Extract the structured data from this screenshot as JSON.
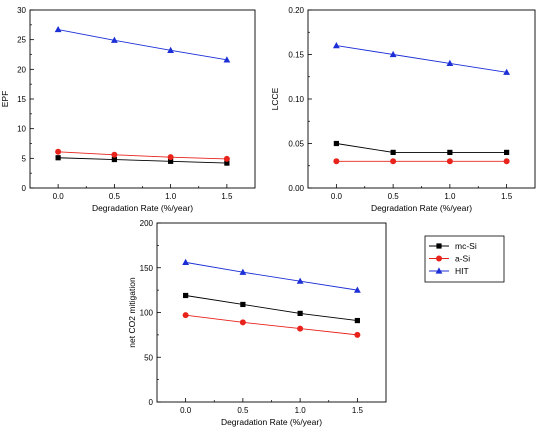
{
  "chart_data": [
    {
      "type": "line",
      "ylabel": "EPF",
      "xlabel": "Degradation Rate (%/year)",
      "x": [
        0.0,
        0.5,
        1.0,
        1.5
      ],
      "xlim": [
        -0.25,
        1.75
      ],
      "ylim": [
        0,
        30
      ],
      "xticks": [
        "0.0",
        "0.5",
        "1.0",
        "1.5"
      ],
      "yticks": [
        "0",
        "5",
        "10",
        "15",
        "20",
        "25",
        "30"
      ],
      "series": [
        {
          "name": "mc-Si",
          "values": [
            5.1,
            4.8,
            4.5,
            4.2
          ]
        },
        {
          "name": "a-Si",
          "values": [
            6.1,
            5.6,
            5.2,
            4.9
          ]
        },
        {
          "name": "HIT",
          "values": [
            26.7,
            24.9,
            23.2,
            21.6
          ]
        }
      ]
    },
    {
      "type": "line",
      "ylabel": "LCCE",
      "xlabel": "Degradation Rate (%/year)",
      "x": [
        0.0,
        0.5,
        1.0,
        1.5
      ],
      "xlim": [
        -0.25,
        1.75
      ],
      "ylim": [
        0,
        0.2
      ],
      "xticks": [
        "0.0",
        "0.5",
        "1.0",
        "1.5"
      ],
      "yticks": [
        "0.00",
        "0.05",
        "0.10",
        "0.15",
        "0.20"
      ],
      "series": [
        {
          "name": "mc-Si",
          "values": [
            0.05,
            0.04,
            0.04,
            0.04
          ]
        },
        {
          "name": "a-Si",
          "values": [
            0.03,
            0.03,
            0.03,
            0.03
          ]
        },
        {
          "name": "HIT",
          "values": [
            0.16,
            0.15,
            0.14,
            0.13
          ]
        }
      ]
    },
    {
      "type": "line",
      "ylabel": "net CO2 mitigation",
      "xlabel": "Degradation Rate (%/year)",
      "x": [
        0.0,
        0.5,
        1.0,
        1.5
      ],
      "xlim": [
        -0.25,
        1.75
      ],
      "ylim": [
        0,
        200
      ],
      "xticks": [
        "0.0",
        "0.5",
        "1.0",
        "1.5"
      ],
      "yticks": [
        "0",
        "50",
        "100",
        "150",
        "200"
      ],
      "series": [
        {
          "name": "mc-Si",
          "values": [
            119,
            109,
            99,
            91
          ]
        },
        {
          "name": "a-Si",
          "values": [
            97,
            89,
            82,
            75
          ]
        },
        {
          "name": "HIT",
          "values": [
            156,
            145,
            135,
            125
          ]
        }
      ]
    }
  ],
  "legend": {
    "placement": "right-of-bottom-chart",
    "items": [
      {
        "label": "mc-Si",
        "color": "#000000",
        "marker": "square"
      },
      {
        "label": "a-Si",
        "color": "#e8231c",
        "marker": "circle"
      },
      {
        "label": "HIT",
        "color": "#1c2fd6",
        "marker": "triangle"
      }
    ]
  },
  "series_colors": {
    "mc-Si": "#000000",
    "a-Si": "#e8231c",
    "HIT": "#1c2fd6"
  }
}
